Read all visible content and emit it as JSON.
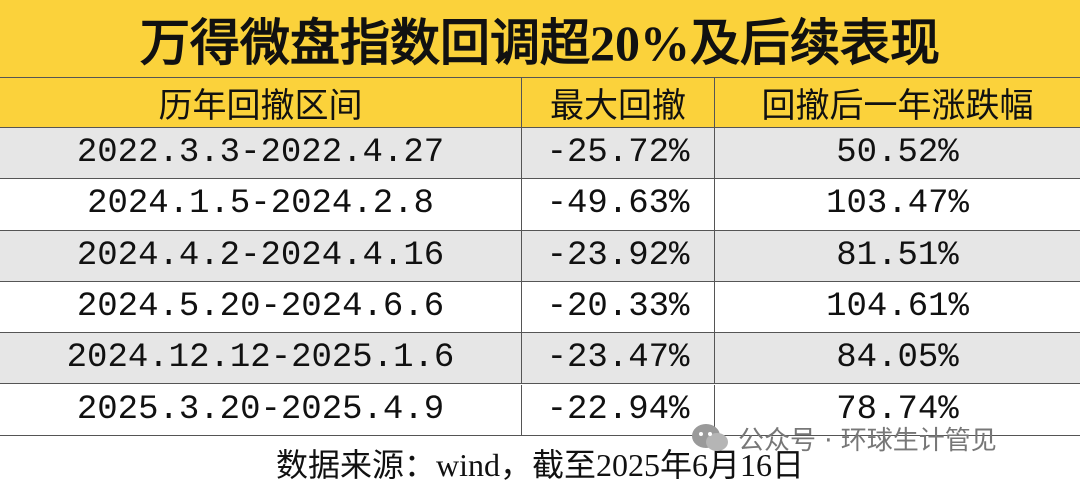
{
  "header": {
    "title": "万得微盘指数回调超20%及后续表现"
  },
  "table": {
    "columns": [
      "历年回撤区间",
      "最大回撤",
      "回撤后一年涨跌幅"
    ],
    "rows": [
      [
        "2022.3.3-2022.4.27",
        "-25.72%",
        "50.52%"
      ],
      [
        "2024.1.5-2024.2.8",
        "-49.63%",
        "103.47%"
      ],
      [
        "2024.4.2-2024.4.16",
        "-23.92%",
        "81.51%"
      ],
      [
        "2024.5.20-2024.6.6",
        "-20.33%",
        "104.61%"
      ],
      [
        "2024.12.12-2025.1.6",
        "-23.47%",
        "84.05%"
      ],
      [
        "2025.3.20-2025.4.9",
        "-22.94%",
        "78.74%"
      ]
    ],
    "footer": "数据来源：wind，截至2025年6月16日"
  },
  "watermark": {
    "text": "公众号 · 环球生计管见"
  }
}
